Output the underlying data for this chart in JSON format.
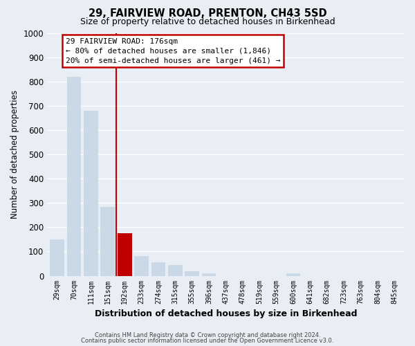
{
  "title": "29, FAIRVIEW ROAD, PRENTON, CH43 5SD",
  "subtitle": "Size of property relative to detached houses in Birkenhead",
  "xlabel": "Distribution of detached houses by size in Birkenhead",
  "ylabel": "Number of detached properties",
  "footer_line1": "Contains HM Land Registry data © Crown copyright and database right 2024.",
  "footer_line2": "Contains public sector information licensed under the Open Government Licence v3.0.",
  "bar_labels": [
    "29sqm",
    "70sqm",
    "111sqm",
    "151sqm",
    "192sqm",
    "233sqm",
    "274sqm",
    "315sqm",
    "355sqm",
    "396sqm",
    "437sqm",
    "478sqm",
    "519sqm",
    "559sqm",
    "600sqm",
    "641sqm",
    "682sqm",
    "723sqm",
    "763sqm",
    "804sqm",
    "845sqm"
  ],
  "bar_values": [
    150,
    820,
    680,
    285,
    175,
    80,
    55,
    45,
    20,
    10,
    0,
    0,
    0,
    0,
    10,
    0,
    0,
    0,
    0,
    0,
    0
  ],
  "bar_color": "#c9d9e8",
  "bar_color_red": "#c00000",
  "red_bar_index": 4,
  "red_line_x": 3.5,
  "annotation_title": "29 FAIRVIEW ROAD: 176sqm",
  "annotation_line1": "← 80% of detached houses are smaller (1,846)",
  "annotation_line2": "20% of semi-detached houses are larger (461) →",
  "annotation_box_color": "#ffffff",
  "annotation_box_edge": "#c00000",
  "ylim": [
    0,
    1000
  ],
  "yticks": [
    0,
    100,
    200,
    300,
    400,
    500,
    600,
    700,
    800,
    900,
    1000
  ],
  "background_color": "#e8eef4",
  "grid_color": "#ffffff"
}
